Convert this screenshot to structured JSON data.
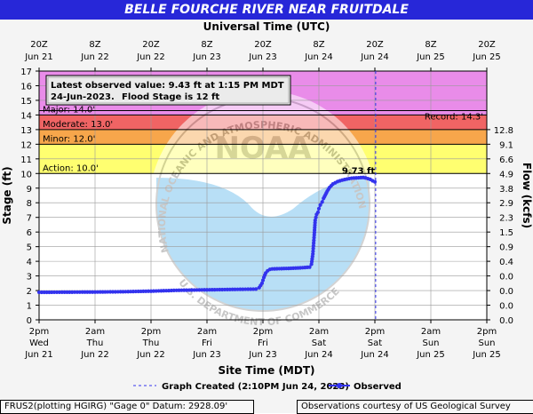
{
  "title": "BELLE FOURCHE RIVER NEAR FRUITDALE",
  "top_axis_title": "Universal Time (UTC)",
  "bottom_axis_title": "Site Time (MDT)",
  "left_axis_title": "Stage (ft)",
  "right_axis_title": "Flow (kcfs)",
  "top_ticks": [
    {
      "l1": "20Z",
      "l2": "Jun 21"
    },
    {
      "l1": "8Z",
      "l2": "Jun 22"
    },
    {
      "l1": "20Z",
      "l2": "Jun 22"
    },
    {
      "l1": "8Z",
      "l2": "Jun 23"
    },
    {
      "l1": "20Z",
      "l2": "Jun 23"
    },
    {
      "l1": "8Z",
      "l2": "Jun 24"
    },
    {
      "l1": "20Z",
      "l2": "Jun 24"
    },
    {
      "l1": "8Z",
      "l2": "Jun 25"
    },
    {
      "l1": "20Z",
      "l2": "Jun 25"
    }
  ],
  "bottom_ticks": [
    {
      "l1": "2pm",
      "l2": "Wed",
      "l3": "Jun 21"
    },
    {
      "l1": "2am",
      "l2": "Thu",
      "l3": "Jun 22"
    },
    {
      "l1": "2pm",
      "l2": "Thu",
      "l3": "Jun 22"
    },
    {
      "l1": "2am",
      "l2": "Fri",
      "l3": "Jun 23"
    },
    {
      "l1": "2pm",
      "l2": "Fri",
      "l3": "Jun 23"
    },
    {
      "l1": "2am",
      "l2": "Sat",
      "l3": "Jun 24"
    },
    {
      "l1": "2pm",
      "l2": "Sat",
      "l3": "Jun 24"
    },
    {
      "l1": "2am",
      "l2": "Sun",
      "l3": "Jun 25"
    },
    {
      "l1": "2pm",
      "l2": "Sun",
      "l3": "Jun 25"
    }
  ],
  "right_ticks": [
    {
      "stage": 13,
      "label": "12.8"
    },
    {
      "stage": 12,
      "label": "9.1"
    },
    {
      "stage": 11,
      "label": "6.6"
    },
    {
      "stage": 10,
      "label": "4.9"
    },
    {
      "stage": 9,
      "label": "3.8"
    },
    {
      "stage": 8,
      "label": "2.9"
    },
    {
      "stage": 7,
      "label": "2.3"
    },
    {
      "stage": 6,
      "label": "1.5"
    },
    {
      "stage": 5,
      "label": "0.9"
    },
    {
      "stage": 4,
      "label": "0.4"
    },
    {
      "stage": 3,
      "label": "0.0"
    },
    {
      "stage": 2,
      "label": "0.0"
    },
    {
      "stage": 1,
      "label": "0.0"
    },
    {
      "stage": 0,
      "label": "0.0"
    }
  ],
  "flood_bands": [
    {
      "label": "Major: 14.0'",
      "from": 14,
      "to": 17,
      "color": "#e98ce9"
    },
    {
      "label": "Moderate: 13.0'",
      "from": 13,
      "to": 14,
      "color": "#f06464"
    },
    {
      "label": "Minor: 12.0'",
      "from": 12,
      "to": 13,
      "color": "#f7a64b"
    },
    {
      "label": "Action: 10.0'",
      "from": 10,
      "to": 12,
      "color": "#ffff70"
    }
  ],
  "record_label": "Record: 14.3'",
  "record_stage": 14.3,
  "latest_box": {
    "line1": "Latest observed value: 9.43 ft at 1:15 PM MDT",
    "line2a": "24-Jun-2023.",
    "line2b": "Flood Stage is 12 ft"
  },
  "peak_label": "9.73 ft",
  "legend": {
    "created": "Graph Created (2:10PM Jun 24, 2023)",
    "observed": "Observed"
  },
  "footer_left": "FRUS2(plotting HGIRG) \"Gage 0\" Datum:  2928.09'",
  "footer_right": "Observations courtesy of US Geological Survey",
  "watermark": "NOAA",
  "watermark_ring": "NATIONAL OCEANIC AND ATMOSPHERIC ADMINISTRATION",
  "watermark_bottom": "U.S. DEPARTMENT OF COMMERCE",
  "colors": {
    "title_bg": "#2727d8",
    "observed": "#3333ee",
    "created_line": "#3333ee"
  },
  "chart_data": {
    "type": "line",
    "x_unit": "hours since Jun 21 2pm MDT",
    "ylim": [
      0,
      17
    ],
    "xlim": [
      0,
      96
    ],
    "graph_created_x": 72.17,
    "peak": {
      "x": 69.5,
      "y": 9.73
    },
    "series": [
      {
        "name": "Observed",
        "x": [
          0,
          6,
          12,
          18,
          24,
          30,
          36,
          42,
          46.5,
          47.2,
          47.8,
          48.2,
          48.6,
          49,
          49.5,
          50,
          52,
          54,
          56,
          58,
          58.4,
          58.7,
          59,
          59.2,
          59.5,
          59.8,
          60,
          60.3,
          60.7,
          61,
          61.4,
          61.8,
          62.3,
          63,
          64,
          65,
          66,
          67,
          68,
          69,
          69.5,
          70,
          71,
          71.5,
          72
        ],
        "y": [
          1.88,
          1.89,
          1.9,
          1.92,
          1.96,
          2.02,
          2.05,
          2.08,
          2.1,
          2.2,
          2.5,
          2.9,
          3.2,
          3.35,
          3.45,
          3.48,
          3.5,
          3.52,
          3.55,
          3.6,
          3.8,
          4.5,
          5.8,
          6.8,
          7.2,
          7.35,
          7.6,
          7.85,
          8.05,
          8.3,
          8.55,
          8.8,
          9.05,
          9.28,
          9.45,
          9.55,
          9.62,
          9.68,
          9.7,
          9.72,
          9.73,
          9.7,
          9.6,
          9.5,
          9.43
        ]
      }
    ]
  }
}
